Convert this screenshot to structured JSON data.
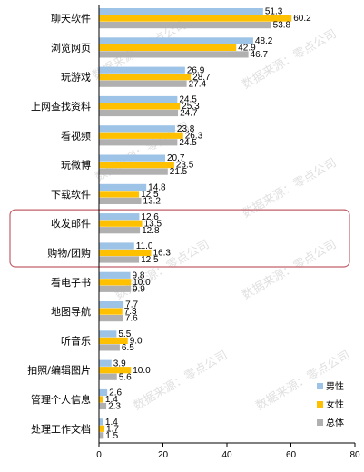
{
  "chart_data": {
    "type": "bar",
    "orientation": "horizontal",
    "categories": [
      "聊天软件",
      "浏览网页",
      "玩游戏",
      "上网查找资料",
      "看视频",
      "玩微博",
      "下载软件",
      "收发邮件",
      "购物/团购",
      "看电子书",
      "地图导航",
      "听音乐",
      "拍照/编辑图片",
      "管理个人信息",
      "处理工作文档"
    ],
    "series": [
      {
        "name": "男性",
        "color": "#9dc3e6",
        "values": [
          51.3,
          48.2,
          26.9,
          24.5,
          23.8,
          20.7,
          14.8,
          12.6,
          11.0,
          9.8,
          7.7,
          5.5,
          3.9,
          2.6,
          1.4
        ]
      },
      {
        "name": "女性",
        "color": "#ffc000",
        "values": [
          60.2,
          42.9,
          28.7,
          25.3,
          26.3,
          23.5,
          12.5,
          13.5,
          16.3,
          10.0,
          7.3,
          9.0,
          10.0,
          1.4,
          1.7
        ]
      },
      {
        "name": "总体",
        "color": "#b0b0b0",
        "values": [
          53.8,
          46.7,
          27.4,
          24.7,
          24.5,
          21.5,
          13.2,
          12.8,
          12.5,
          9.9,
          7.6,
          6.5,
          5.6,
          2.3,
          1.5
        ]
      }
    ],
    "xlim": [
      0,
      80
    ],
    "xticks": [
      "0",
      "20",
      "40",
      "60",
      "80"
    ],
    "legend_position": "bottom-right",
    "highlighted_categories": [
      "收发邮件",
      "购物/团购"
    ],
    "highlight_color": "#c0606a",
    "watermark": "数据来源：零点公司",
    "grid": false
  }
}
